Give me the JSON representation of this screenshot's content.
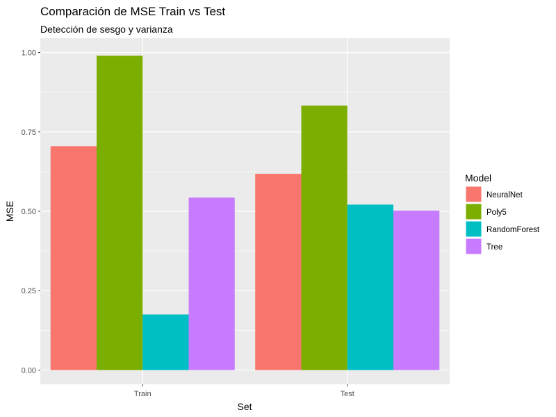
{
  "chart_data": {
    "type": "bar",
    "title": "Comparación de MSE Train vs Test",
    "subtitle": "Detección de sesgo y varianza",
    "xlabel": "Set",
    "ylabel": "MSE",
    "ylim": [
      -0.045,
      1.045
    ],
    "yticks": [
      0.0,
      0.25,
      0.5,
      0.75,
      1.0
    ],
    "ytick_labels": [
      "0.00",
      "0.25",
      "0.50",
      "0.75",
      "1.00"
    ],
    "categories": [
      "Train",
      "Test"
    ],
    "legend_title": "Model",
    "legend_position": "right",
    "series": [
      {
        "name": "NeuralNet",
        "color": "#F8766D",
        "values": [
          0.705,
          0.618
        ]
      },
      {
        "name": "Poly5",
        "color": "#7CAE00",
        "values": [
          0.99,
          0.833
        ]
      },
      {
        "name": "RandomForest",
        "color": "#00BFC4",
        "values": [
          0.175,
          0.521
        ]
      },
      {
        "name": "Tree",
        "color": "#C77CFF",
        "values": [
          0.543,
          0.502
        ]
      }
    ]
  }
}
